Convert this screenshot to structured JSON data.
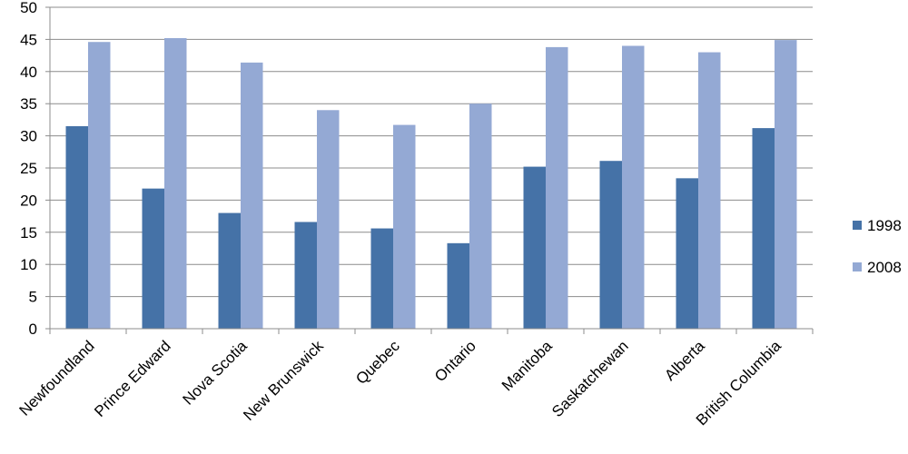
{
  "chart_data": {
    "type": "bar",
    "title": "",
    "xlabel": "",
    "ylabel": "",
    "ylim": [
      0,
      50
    ],
    "yticks": [
      0,
      5,
      10,
      15,
      20,
      25,
      30,
      35,
      40,
      45,
      50
    ],
    "grid": true,
    "legend_position": "right",
    "categories": [
      "Newfoundland",
      "Prince Edward",
      "Nova Scotia",
      "New Brunswick",
      "Quebec",
      "Ontario",
      "Manitoba",
      "Saskatchewan",
      "Alberta",
      "British Columbia"
    ],
    "series": [
      {
        "name": "1998",
        "color": "#4572A7",
        "values": [
          31.5,
          21.8,
          18.0,
          16.6,
          15.6,
          13.3,
          25.2,
          26.1,
          23.4,
          31.2
        ]
      },
      {
        "name": "2008",
        "color": "#94A9D4",
        "values": [
          44.6,
          45.2,
          41.4,
          34.0,
          31.7,
          35.0,
          43.8,
          44.0,
          43.0,
          44.9
        ]
      }
    ]
  }
}
